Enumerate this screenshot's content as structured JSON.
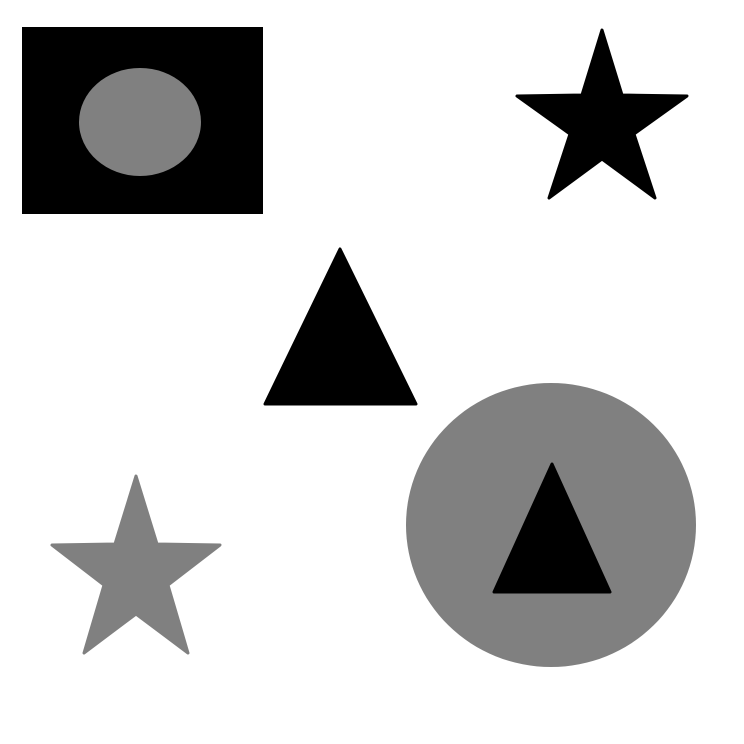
{
  "canvas": {
    "background": "#ffffff"
  },
  "colors": {
    "black": "#000000",
    "gray": "#808080"
  },
  "shapes": [
    {
      "name": "black-rectangle",
      "kind": "rectangle",
      "color": "black"
    },
    {
      "name": "gray-ellipse-in-rectangle",
      "kind": "ellipse",
      "color": "gray"
    },
    {
      "name": "black-star",
      "kind": "star",
      "color": "black"
    },
    {
      "name": "black-triangle-center",
      "kind": "triangle",
      "color": "black"
    },
    {
      "name": "gray-star",
      "kind": "star",
      "color": "gray"
    },
    {
      "name": "gray-circle",
      "kind": "circle",
      "color": "gray"
    },
    {
      "name": "black-triangle-in-circle",
      "kind": "triangle",
      "color": "black"
    }
  ]
}
